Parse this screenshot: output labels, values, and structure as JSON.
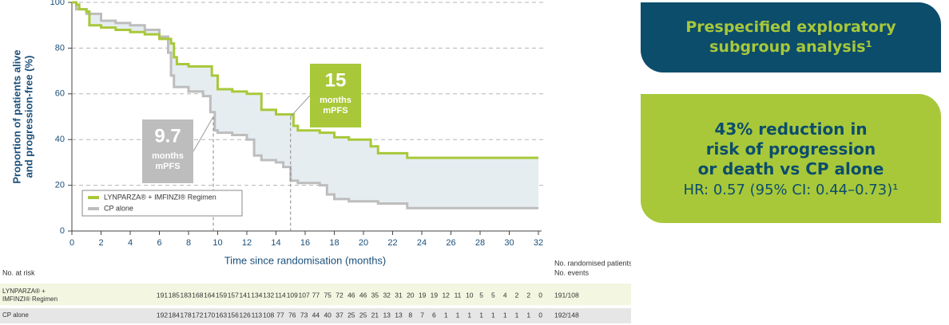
{
  "chart_data": {
    "type": "step",
    "ylabel": [
      "Proportion of patients alive",
      "and progression-free (%)"
    ],
    "xlabel": "Time since randomisation (months)",
    "xlim": [
      0,
      32
    ],
    "xticks": [
      0,
      2,
      4,
      6,
      8,
      10,
      12,
      14,
      16,
      18,
      20,
      22,
      24,
      26,
      28,
      30,
      32
    ],
    "ylim": [
      0,
      100
    ],
    "yticks": [
      0,
      20,
      40,
      60,
      80,
      100
    ],
    "grid": true,
    "legend": "lower-left",
    "series": [
      {
        "name": "LYNPARZA® + IMFINZI® Regimen",
        "color": "#a8c83a",
        "x": [
          0,
          0.3,
          0.5,
          1,
          1.2,
          2,
          3,
          4,
          5,
          6,
          6.8,
          7,
          7.2,
          8,
          9,
          9.6,
          10,
          11,
          12,
          13,
          14,
          15,
          15.2,
          15.5,
          17,
          18,
          19,
          20.5,
          21,
          22.5,
          23,
          32
        ],
        "values": [
          100,
          99,
          97,
          96,
          90,
          89,
          88,
          87,
          86,
          84,
          82,
          76,
          73,
          72,
          72,
          68,
          62,
          61,
          60,
          53,
          51,
          51,
          46,
          44,
          43,
          41,
          40,
          37,
          34,
          34,
          32,
          32
        ]
      },
      {
        "name": "CP alone",
        "color": "#bdbdbd",
        "x": [
          0,
          0.3,
          1,
          2,
          3,
          4,
          5,
          6,
          6.6,
          6.8,
          7,
          8,
          9,
          9.5,
          9.8,
          10,
          11,
          12,
          12.5,
          13,
          14,
          14.5,
          15,
          15.5,
          17,
          17.5,
          18,
          19,
          21,
          23,
          32
        ],
        "values": [
          100,
          97,
          95,
          92,
          91,
          90,
          88,
          85,
          78,
          68,
          63,
          61,
          59,
          52,
          44,
          43,
          42,
          40,
          33,
          31,
          30,
          28,
          22,
          21,
          20,
          16,
          14,
          13,
          12,
          10,
          10
        ]
      }
    ],
    "annotations": [
      {
        "x": 15,
        "text": "15",
        "lines": [
          "months",
          "mPFS"
        ],
        "color": "#a8c83a"
      },
      {
        "x": 9.7,
        "text": "9.7",
        "lines": [
          "months",
          "mPFS"
        ],
        "color": "#bdbdbd"
      }
    ]
  },
  "risk_table": {
    "title": "No. at risk",
    "side_header": [
      "No. randomised patients/",
      "No. events"
    ],
    "rows": [
      {
        "label": [
          "LYNPARZA® +",
          "IMFINZI® Regimen"
        ],
        "counts": [
          191,
          185,
          183,
          168,
          164,
          159,
          157,
          141,
          134,
          132,
          114,
          109,
          107,
          77,
          75,
          72,
          46,
          46,
          35,
          32,
          31,
          20,
          19,
          19,
          12,
          11,
          10,
          5,
          5,
          4,
          2,
          2,
          0
        ],
        "total": "191/108"
      },
      {
        "label": [
          "CP alone"
        ],
        "counts": [
          192,
          184,
          178,
          172,
          170,
          163,
          156,
          126,
          113,
          108,
          77,
          76,
          73,
          44,
          40,
          37,
          25,
          25,
          21,
          13,
          13,
          8,
          7,
          6,
          1,
          1,
          1,
          1,
          1,
          1,
          1,
          1,
          0
        ],
        "total": "192/148"
      }
    ]
  },
  "panels": {
    "subgroup": "Prespecified exploratory subgroup analysis¹",
    "headline": [
      "43% reduction in",
      "risk of progression",
      "or death vs CP alone"
    ],
    "hr": "HR: 0.57 (95% CI: 0.44–0.73)¹"
  }
}
